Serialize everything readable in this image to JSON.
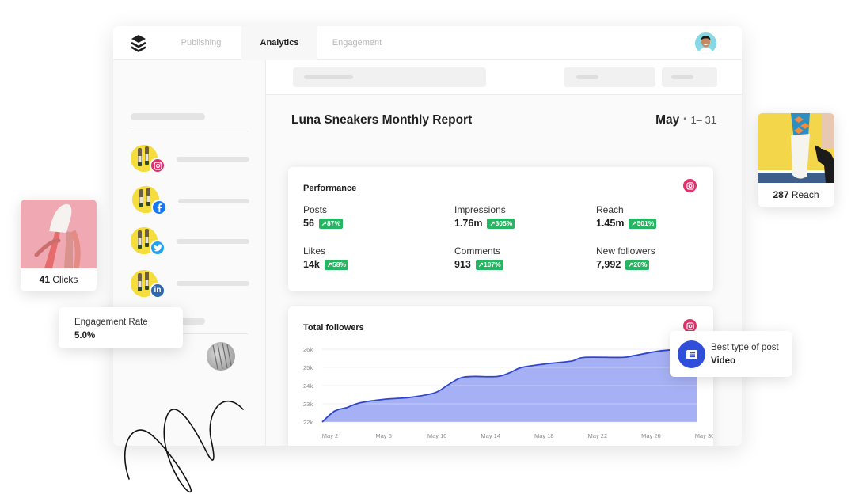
{
  "topbar": {
    "logo": "buffer-stack-logo",
    "tabs": [
      {
        "label": "Publishing",
        "active": false
      },
      {
        "label": "Analytics",
        "active": true
      },
      {
        "label": "Engagement",
        "active": false
      }
    ]
  },
  "sidebar": {
    "accounts": [
      {
        "network": "instagram",
        "color": "#e1306c"
      },
      {
        "network": "facebook",
        "color": "#1877f2"
      },
      {
        "network": "twitter",
        "color": "#1da1f2"
      },
      {
        "network": "linkedin",
        "color": "#2d67b2"
      }
    ]
  },
  "report": {
    "title": "Luna Sneakers Monthly Report",
    "month": "May",
    "separator": "•",
    "range": "1– 31"
  },
  "performance": {
    "title": "Performance",
    "network_icon": "instagram-icon",
    "metrics": [
      {
        "label": "Posts",
        "value": "56",
        "change": "↗87%"
      },
      {
        "label": "Impressions",
        "value": "1.76m",
        "change": "↗305%"
      },
      {
        "label": "Reach",
        "value": "1.45m",
        "change": "↗501%"
      },
      {
        "label": "Likes",
        "value": "14k",
        "change": "↗58%"
      },
      {
        "label": "Comments",
        "value": "913",
        "change": "↗107%"
      },
      {
        "label": "New followers",
        "value": "7,992",
        "change": "↗20%"
      }
    ],
    "badge_color": "#27b463"
  },
  "followers_card": {
    "title": "Total followers",
    "network_icon": "instagram-icon"
  },
  "chart_data": {
    "type": "area",
    "title": "Total followers",
    "xlabel": "",
    "ylabel": "",
    "x": [
      1,
      2,
      3,
      4,
      6,
      8,
      10,
      11,
      12,
      13,
      15,
      16,
      17,
      19,
      21,
      22,
      25,
      26,
      28,
      30,
      31
    ],
    "values": [
      22000,
      22600,
      22800,
      23050,
      23250,
      23350,
      23600,
      24000,
      24400,
      24500,
      24500,
      24700,
      25000,
      25200,
      25350,
      25550,
      25550,
      25650,
      25900,
      26000,
      26000
    ],
    "x_tick_labels": [
      "May 2",
      "May 6",
      "May 10",
      "May 14",
      "May 18",
      "May 22",
      "May 26",
      "May 30"
    ],
    "y_tick_labels": [
      "26k",
      "25k",
      "24k",
      "23k",
      "22k"
    ],
    "ylim": [
      22000,
      26000
    ],
    "grid": true,
    "line_color": "#2f45d0",
    "fill_color": "#a6b1f5"
  },
  "floating": {
    "clicks": {
      "value": "41",
      "label": "Clicks"
    },
    "reach": {
      "value": "287",
      "label": "Reach"
    },
    "engagement": {
      "label": "Engagement Rate",
      "value": "5.0%"
    },
    "best_post": {
      "label": "Best type of post",
      "value": "Video"
    }
  }
}
